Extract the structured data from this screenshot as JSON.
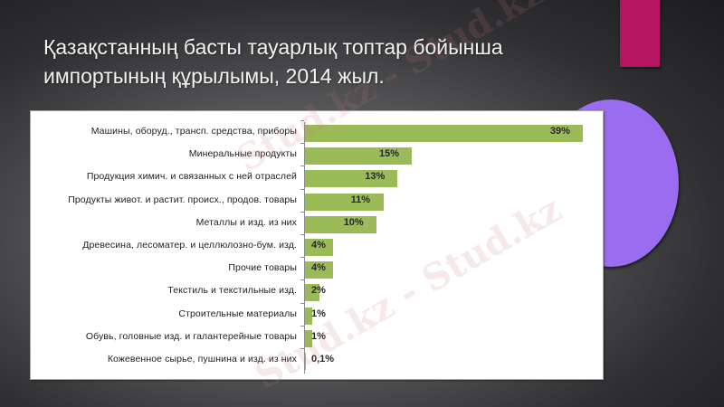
{
  "slide": {
    "title_line1": "Қазақстанның басты тауарлық топтар бойынша",
    "title_line2": "импортының құрылымы, 2014 жыл.",
    "watermark": "Stud.kz - Stud.kz",
    "colors": {
      "accent_bar": "#b5155f",
      "accent_circle": "#9b6cf0",
      "bar_fill": "#9bbb59",
      "panel_bg": "#ffffff"
    }
  },
  "chart_data": {
    "type": "bar",
    "orientation": "horizontal",
    "title": "Қазақстанның басты тауарлық топтар бойынша импортының құрылымы, 2014 жыл.",
    "xlabel": "",
    "ylabel": "",
    "unit": "%",
    "grid": false,
    "legend": null,
    "xlim": [
      0,
      40
    ],
    "categories": [
      "Машины, оборуд., трансп. средства, приборы",
      "Минеральные продукты",
      "Продукция химич. и связанных с ней отраслей",
      "Продукты живот. и растит. происх., продов. товары",
      "Металлы и изд. из них",
      "Древесина, лесоматер. и целлюлозно-бум. изд.",
      "Прочие товары",
      "Текстиль и текстильные изд.",
      "Строительные материалы",
      "Обувь, головные изд. и галантерейные товары",
      "Кожевенное сырье, пушнина и изд. из них"
    ],
    "values": [
      39,
      15,
      13,
      11,
      10,
      4,
      4,
      2,
      1,
      1,
      0.1
    ],
    "labels": [
      "39%",
      "15%",
      "13%",
      "11%",
      "10%",
      "4%",
      "4%",
      "2%",
      "1%",
      "1%",
      "0,1%"
    ]
  }
}
